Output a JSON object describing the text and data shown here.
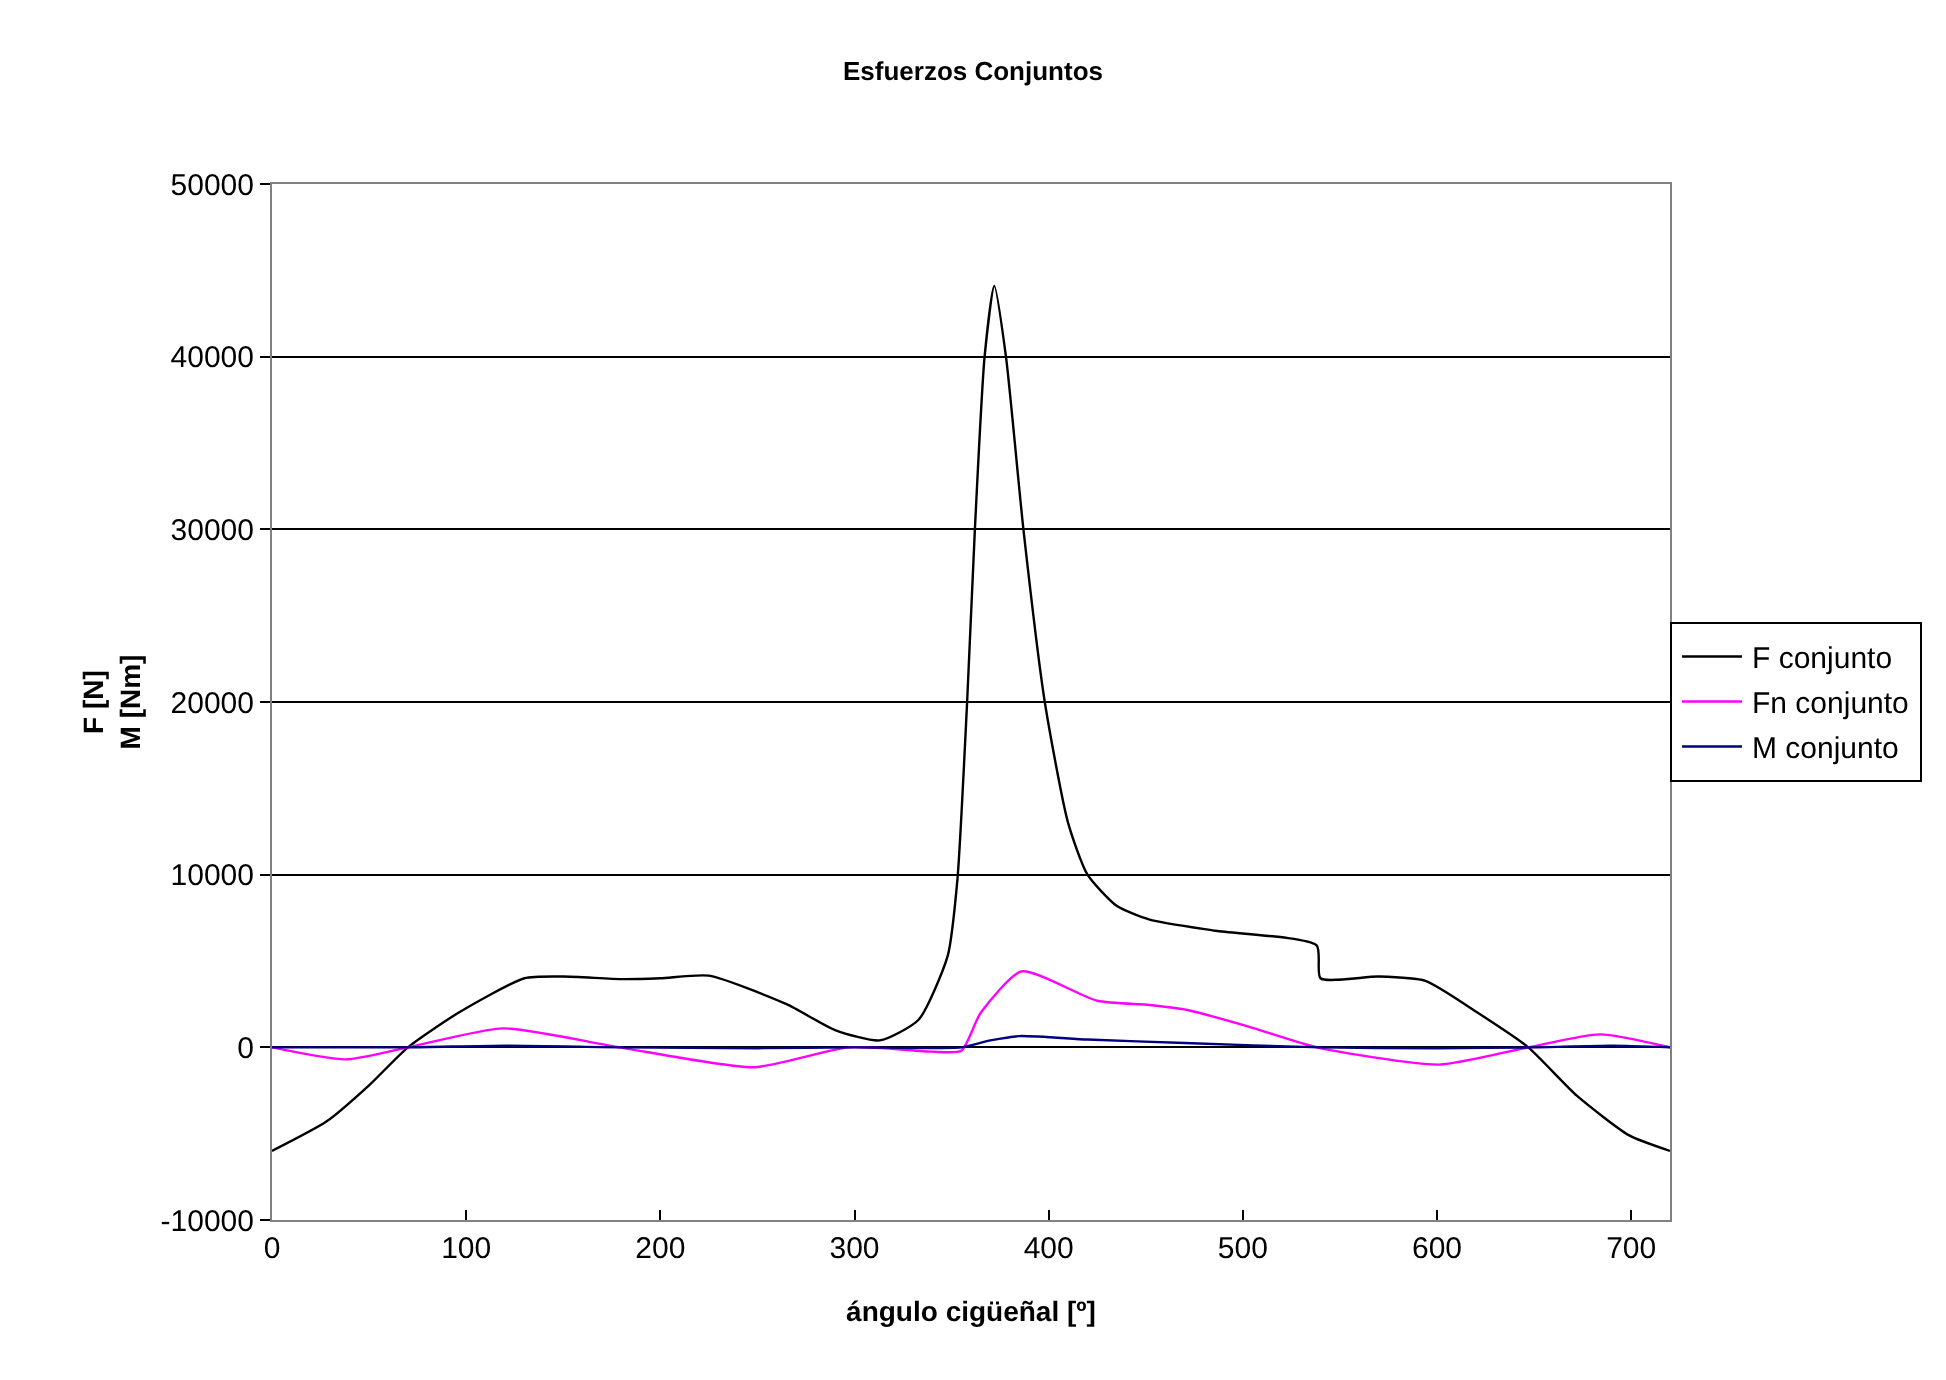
{
  "chart_data": {
    "type": "line",
    "title": "Esfuerzos Conjuntos",
    "xlabel": "ángulo cigüeñal [º]",
    "ylabel": "F [N]\nM [Nm]",
    "xlim": [
      0,
      720
    ],
    "xticks": [
      0,
      100,
      200,
      300,
      400,
      500,
      600,
      700
    ],
    "ylim": [
      -10000,
      50000
    ],
    "yticks": [
      -10000,
      0,
      10000,
      20000,
      30000,
      40000,
      50000
    ],
    "grid": "y",
    "legend": "right",
    "marker": "none",
    "line_style": "solid",
    "series": [
      {
        "name": "F conjunto",
        "color": "#000000",
        "x": [
          0,
          28,
          50,
          70,
          96,
          130,
          150,
          180,
          200,
          225,
          265,
          290,
          313,
          333,
          348,
          353,
          358,
          362,
          367,
          372,
          378,
          387,
          398,
          410,
          420,
          435,
          452,
          486,
          538,
          540,
          570,
          594,
          621,
          647,
          672,
          699,
          720
        ],
        "values": [
          -6000,
          -4300,
          -2200,
          0,
          2000,
          4000,
          4100,
          3950,
          4000,
          4150,
          2500,
          1000,
          400,
          1600,
          5300,
          9700,
          20000,
          30000,
          40000,
          44100,
          40000,
          30000,
          20000,
          13000,
          10000,
          8200,
          7400,
          6750,
          5900,
          4000,
          4100,
          3850,
          2000,
          0,
          -2800,
          -5100,
          -6000
        ]
      },
      {
        "name": "Fn conjunto",
        "color": "#ff00ff",
        "x": [
          0,
          38,
          70,
          119,
          179,
          248,
          297,
          340,
          355,
          365,
          386,
          425,
          452,
          472,
          503,
          538,
          601,
          647,
          684,
          720
        ],
        "values": [
          0,
          -700,
          0,
          1100,
          0,
          -1150,
          0,
          -250,
          -200,
          2000,
          4400,
          2700,
          2450,
          2150,
          1200,
          0,
          -1000,
          0,
          750,
          0
        ]
      },
      {
        "name": "M conjunto",
        "color": "#000080",
        "x": [
          0,
          70,
          120,
          180,
          250,
          300,
          355,
          370,
          385,
          420,
          470,
          540,
          600,
          650,
          690,
          720
        ],
        "values": [
          0,
          0,
          100,
          0,
          -50,
          0,
          0,
          400,
          650,
          450,
          250,
          0,
          -50,
          0,
          100,
          0
        ]
      }
    ]
  }
}
